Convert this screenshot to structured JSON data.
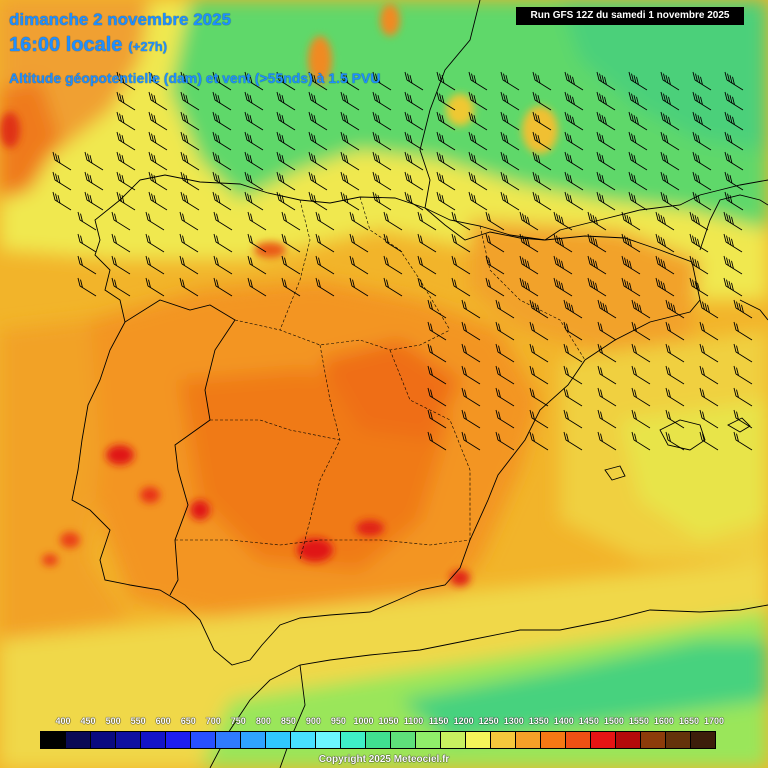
{
  "header": {
    "date_line": "dimanche 2 novembre 2025",
    "time_label": "16:00 locale",
    "lead_label": "(+27h)",
    "field_line": "Altitude géopotentielle (dam) et vent (>55nds) à 1.5 PVU"
  },
  "run_label": "Run GFS 12Z du samedi 1 novembre 2025",
  "copyright": "Copyright 2025 Meteociel.fr",
  "legend": {
    "ticks": [
      "400",
      "450",
      "500",
      "550",
      "600",
      "650",
      "700",
      "750",
      "800",
      "850",
      "900",
      "950",
      "1000",
      "1050",
      "1100",
      "1150",
      "1200",
      "1250",
      "1300",
      "1350",
      "1400",
      "1450",
      "1500",
      "1550",
      "1600",
      "1650",
      "1700"
    ],
    "colors": [
      "#000000",
      "#0a0a55",
      "#0a0a80",
      "#1010a0",
      "#1414c8",
      "#1e1ef0",
      "#2850ff",
      "#2f7bff",
      "#2fa3ff",
      "#30c8ff",
      "#48e0ff",
      "#6cf5ff",
      "#3ff0c8",
      "#40e090",
      "#5ee07a",
      "#90ee6a",
      "#c8f060",
      "#f5f55a",
      "#f5c83c",
      "#f5a028",
      "#f57814",
      "#f05014",
      "#e61414",
      "#b40a0a",
      "#8c3c0a",
      "#64320a",
      "#3c1e0a"
    ]
  },
  "map_layers": {
    "field_description_colors": {
      "green": "#6ee05a",
      "yellow": "#f5f04a",
      "light_orange": "#f5c83c",
      "orange": "#f5a028",
      "dark_orange": "#f07814",
      "red": "#e61414"
    },
    "wind_barb_color": "#000000",
    "border_color": "#000000"
  }
}
